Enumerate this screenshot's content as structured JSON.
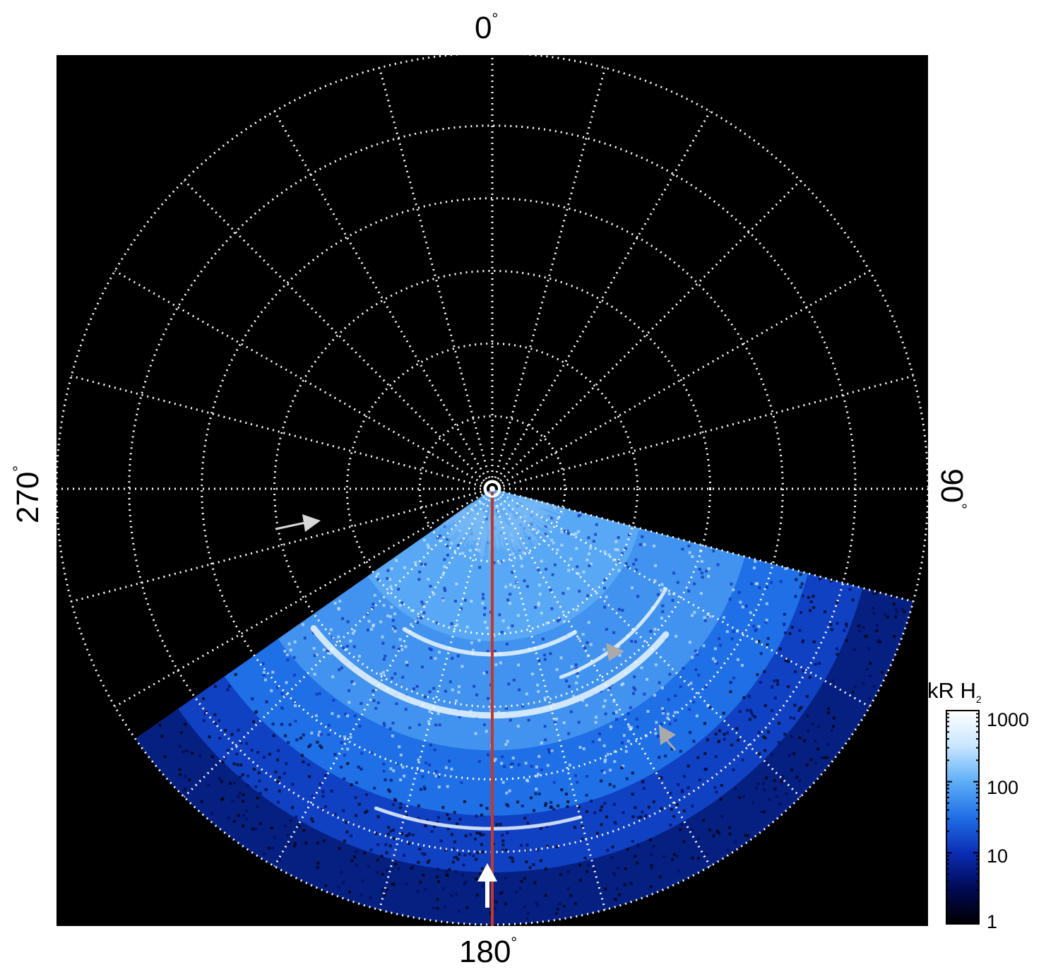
{
  "chart_data": {
    "type": "heatmap",
    "projection": "polar (orthographic, pole-centered)",
    "background": "#000000",
    "grid": true,
    "grid_style": "white dotted",
    "longitude_labels": [
      {
        "text": "0",
        "unit": "°"
      },
      {
        "text": "90",
        "unit": "°"
      },
      {
        "text": "180",
        "unit": "°"
      },
      {
        "text": "270",
        "unit": "°"
      }
    ],
    "longitude_gridline_spacing_deg": 15,
    "latitude_rings": 6,
    "colorbar": {
      "label": "kR H",
      "label_subscript": "2",
      "scale": "log",
      "range": [
        1,
        1000
      ],
      "ticks": [
        "1",
        "10",
        "100",
        "1000"
      ],
      "colormap": [
        "#000000",
        "#000a55",
        "#0b2db4",
        "#1f6fe6",
        "#5faef6",
        "#c8e6ff",
        "#ffffff"
      ],
      "placement": "right"
    },
    "emission_region": {
      "longitude_range_deg": [
        105,
        235
      ],
      "color_scale": "blue"
    },
    "reference_line": {
      "longitude_deg": 180,
      "color": "#c0392b"
    },
    "markers": [
      {
        "kind": "arrow",
        "color": "#ffffff"
      },
      {
        "kind": "arrow",
        "color": "#d8d8d8"
      },
      {
        "kind": "arrowhead",
        "color": "#aaaaaa"
      },
      {
        "kind": "arrowhead",
        "color": "#aaaaaa"
      }
    ]
  }
}
